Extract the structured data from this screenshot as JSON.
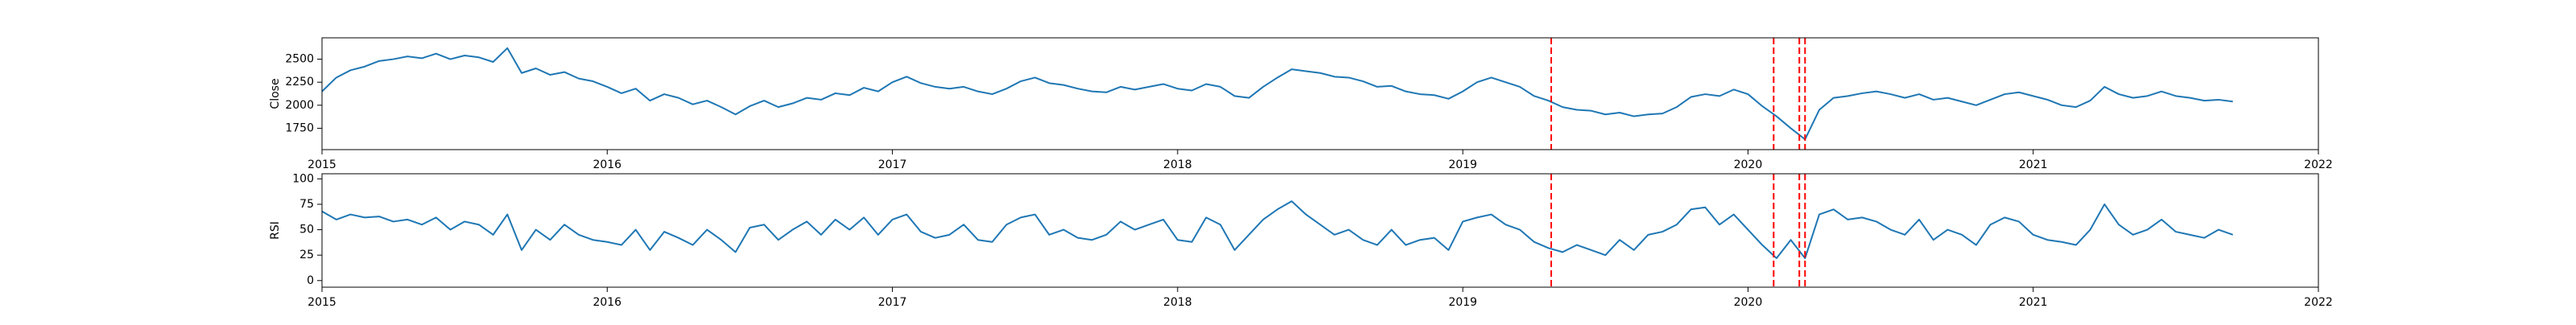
{
  "chart_data": [
    {
      "type": "line",
      "ylabel": "Close",
      "color": "#1f77b4",
      "xlim": [
        2015,
        2022
      ],
      "xticks": [
        2015,
        2016,
        2017,
        2018,
        2019,
        2020,
        2021,
        2022
      ],
      "ylim": [
        1518,
        2732
      ],
      "yticks": [
        1750,
        2000,
        2250,
        2500
      ],
      "vlines": [
        2019.31,
        2020.09,
        2020.18,
        2020.2
      ],
      "vline_color": "red",
      "x": [
        2015.0,
        2015.05,
        2015.1,
        2015.15,
        2015.2,
        2015.25,
        2015.3,
        2015.35,
        2015.4,
        2015.45,
        2015.5,
        2015.55,
        2015.6,
        2015.65,
        2015.7,
        2015.75,
        2015.8,
        2015.85,
        2015.9,
        2015.95,
        2016.0,
        2016.05,
        2016.1,
        2016.15,
        2016.2,
        2016.25,
        2016.3,
        2016.35,
        2016.4,
        2016.45,
        2016.5,
        2016.55,
        2016.6,
        2016.65,
        2016.7,
        2016.75,
        2016.8,
        2016.85,
        2016.9,
        2016.95,
        2017.0,
        2017.05,
        2017.1,
        2017.15,
        2017.2,
        2017.25,
        2017.3,
        2017.35,
        2017.4,
        2017.45,
        2017.5,
        2017.55,
        2017.6,
        2017.65,
        2017.7,
        2017.75,
        2017.8,
        2017.85,
        2017.9,
        2017.95,
        2018.0,
        2018.05,
        2018.1,
        2018.15,
        2018.2,
        2018.25,
        2018.3,
        2018.35,
        2018.4,
        2018.45,
        2018.5,
        2018.55,
        2018.6,
        2018.65,
        2018.7,
        2018.75,
        2018.8,
        2018.85,
        2018.9,
        2018.95,
        2019.0,
        2019.05,
        2019.1,
        2019.15,
        2019.2,
        2019.25,
        2019.3,
        2019.35,
        2019.4,
        2019.45,
        2019.5,
        2019.55,
        2019.6,
        2019.65,
        2019.7,
        2019.75,
        2019.8,
        2019.85,
        2019.9,
        2019.95,
        2020.0,
        2020.05,
        2020.1,
        2020.15,
        2020.2,
        2020.25,
        2020.3,
        2020.35,
        2020.4,
        2020.45,
        2020.5,
        2020.55,
        2020.6,
        2020.65,
        2020.7,
        2020.75,
        2020.8,
        2020.85,
        2020.9,
        2020.95,
        2021.0,
        2021.05,
        2021.1,
        2021.15,
        2021.2,
        2021.25,
        2021.3,
        2021.35,
        2021.4,
        2021.45,
        2021.5,
        2021.55,
        2021.6,
        2021.65,
        2021.7
      ],
      "values": [
        2150,
        2300,
        2380,
        2420,
        2480,
        2500,
        2530,
        2510,
        2560,
        2500,
        2540,
        2520,
        2470,
        2620,
        2350,
        2400,
        2330,
        2360,
        2290,
        2260,
        2200,
        2130,
        2180,
        2050,
        2120,
        2080,
        2010,
        2050,
        1980,
        1900,
        1990,
        2050,
        1980,
        2020,
        2080,
        2060,
        2130,
        2110,
        2190,
        2150,
        2250,
        2310,
        2240,
        2200,
        2180,
        2200,
        2150,
        2120,
        2180,
        2260,
        2300,
        2240,
        2220,
        2180,
        2150,
        2140,
        2200,
        2170,
        2200,
        2230,
        2180,
        2160,
        2230,
        2200,
        2100,
        2080,
        2200,
        2300,
        2390,
        2370,
        2350,
        2310,
        2300,
        2260,
        2200,
        2210,
        2150,
        2120,
        2110,
        2070,
        2150,
        2250,
        2300,
        2250,
        2200,
        2100,
        2050,
        1980,
        1950,
        1940,
        1900,
        1920,
        1880,
        1900,
        1910,
        1980,
        2090,
        2120,
        2100,
        2170,
        2120,
        1990,
        1880,
        1750,
        1630,
        1950,
        2080,
        2100,
        2130,
        2150,
        2120,
        2080,
        2120,
        2060,
        2080,
        2040,
        2000,
        2060,
        2120,
        2140,
        2100,
        2060,
        2000,
        1980,
        2050,
        2200,
        2120,
        2080,
        2100,
        2150,
        2100,
        2080,
        2050,
        2060,
        2040
      ]
    },
    {
      "type": "line",
      "ylabel": "RSI",
      "color": "#1f77b4",
      "xlim": [
        2015,
        2022
      ],
      "xticks": [
        2015,
        2016,
        2017,
        2018,
        2019,
        2020,
        2021,
        2022
      ],
      "ylim": [
        -6.5,
        105
      ],
      "yticks": [
        0,
        25,
        50,
        75,
        100
      ],
      "vlines": [
        2019.31,
        2020.09,
        2020.18,
        2020.2
      ],
      "vline_color": "red",
      "x": [
        2015.0,
        2015.05,
        2015.1,
        2015.15,
        2015.2,
        2015.25,
        2015.3,
        2015.35,
        2015.4,
        2015.45,
        2015.5,
        2015.55,
        2015.6,
        2015.65,
        2015.7,
        2015.75,
        2015.8,
        2015.85,
        2015.9,
        2015.95,
        2016.0,
        2016.05,
        2016.1,
        2016.15,
        2016.2,
        2016.25,
        2016.3,
        2016.35,
        2016.4,
        2016.45,
        2016.5,
        2016.55,
        2016.6,
        2016.65,
        2016.7,
        2016.75,
        2016.8,
        2016.85,
        2016.9,
        2016.95,
        2017.0,
        2017.05,
        2017.1,
        2017.15,
        2017.2,
        2017.25,
        2017.3,
        2017.35,
        2017.4,
        2017.45,
        2017.5,
        2017.55,
        2017.6,
        2017.65,
        2017.7,
        2017.75,
        2017.8,
        2017.85,
        2017.9,
        2017.95,
        2018.0,
        2018.05,
        2018.1,
        2018.15,
        2018.2,
        2018.25,
        2018.3,
        2018.35,
        2018.4,
        2018.45,
        2018.5,
        2018.55,
        2018.6,
        2018.65,
        2018.7,
        2018.75,
        2018.8,
        2018.85,
        2018.9,
        2018.95,
        2019.0,
        2019.05,
        2019.1,
        2019.15,
        2019.2,
        2019.25,
        2019.3,
        2019.35,
        2019.4,
        2019.45,
        2019.5,
        2019.55,
        2019.6,
        2019.65,
        2019.7,
        2019.75,
        2019.8,
        2019.85,
        2019.9,
        2019.95,
        2020.0,
        2020.05,
        2020.1,
        2020.15,
        2020.2,
        2020.25,
        2020.3,
        2020.35,
        2020.4,
        2020.45,
        2020.5,
        2020.55,
        2020.6,
        2020.65,
        2020.7,
        2020.75,
        2020.8,
        2020.85,
        2020.9,
        2020.95,
        2021.0,
        2021.05,
        2021.1,
        2021.15,
        2021.2,
        2021.25,
        2021.3,
        2021.35,
        2021.4,
        2021.45,
        2021.5,
        2021.55,
        2021.6,
        2021.65,
        2021.7
      ],
      "values": [
        68,
        60,
        65,
        62,
        63,
        58,
        60,
        55,
        62,
        50,
        58,
        55,
        45,
        65,
        30,
        50,
        40,
        55,
        45,
        40,
        38,
        35,
        50,
        30,
        48,
        42,
        35,
        50,
        40,
        28,
        52,
        55,
        40,
        50,
        58,
        45,
        60,
        50,
        62,
        45,
        60,
        65,
        48,
        42,
        45,
        55,
        40,
        38,
        55,
        62,
        65,
        45,
        50,
        42,
        40,
        45,
        58,
        50,
        55,
        60,
        40,
        38,
        62,
        55,
        30,
        45,
        60,
        70,
        78,
        65,
        55,
        45,
        50,
        40,
        35,
        50,
        35,
        40,
        42,
        30,
        58,
        62,
        65,
        55,
        50,
        38,
        32,
        28,
        35,
        30,
        25,
        40,
        30,
        45,
        48,
        55,
        70,
        72,
        55,
        65,
        50,
        35,
        22,
        40,
        22,
        65,
        70,
        60,
        62,
        58,
        50,
        45,
        60,
        40,
        50,
        45,
        35,
        55,
        62,
        58,
        45,
        40,
        38,
        35,
        50,
        75,
        55,
        45,
        50,
        60,
        48,
        45,
        42,
        50,
        45
      ]
    }
  ]
}
